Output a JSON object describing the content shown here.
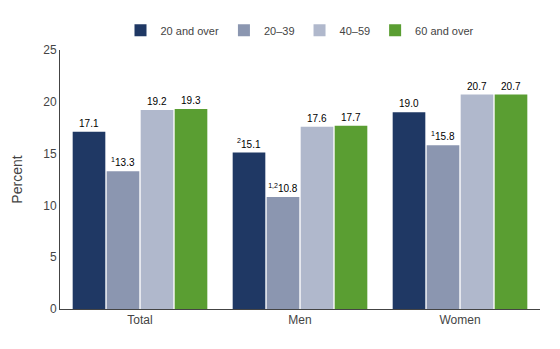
{
  "chart_data": {
    "type": "bar",
    "categories": [
      "Total",
      "Men",
      "Women"
    ],
    "series": [
      {
        "name": "20 and over",
        "values": [
          17.1,
          15.1,
          19.0
        ],
        "value_labels": [
          "17.1",
          "15.1",
          "19.0"
        ],
        "color": "#1f3864"
      },
      {
        "name": "20–39",
        "values": [
          13.3,
          10.8,
          15.8
        ],
        "value_labels": [
          "13.3",
          "10.8",
          "15.8"
        ],
        "color": "#8b96b0"
      },
      {
        "name": "40–59",
        "values": [
          19.2,
          17.6,
          20.7
        ],
        "value_labels": [
          "19.2",
          "17.6",
          "20.7"
        ],
        "color": "#b0b8cc"
      },
      {
        "name": "60 and over",
        "values": [
          19.3,
          17.7,
          20.7
        ],
        "value_labels": [
          "19.3",
          "17.7",
          "20.7"
        ],
        "color": "#5a9e32"
      }
    ],
    "annotations": [
      {
        "category": "Total",
        "series": "20–39",
        "text": "1"
      },
      {
        "category": "Men",
        "series": "20 and over",
        "text": "2"
      },
      {
        "category": "Men",
        "series": "20–39",
        "text": "1,2"
      },
      {
        "category": "Women",
        "series": "20–39",
        "text": "1"
      }
    ],
    "ylabel": "Percent",
    "ylim": [
      0,
      25
    ],
    "yticks": [
      0,
      5,
      10,
      15,
      20,
      25
    ],
    "grid": false,
    "legend": "top",
    "data_labels": true
  }
}
